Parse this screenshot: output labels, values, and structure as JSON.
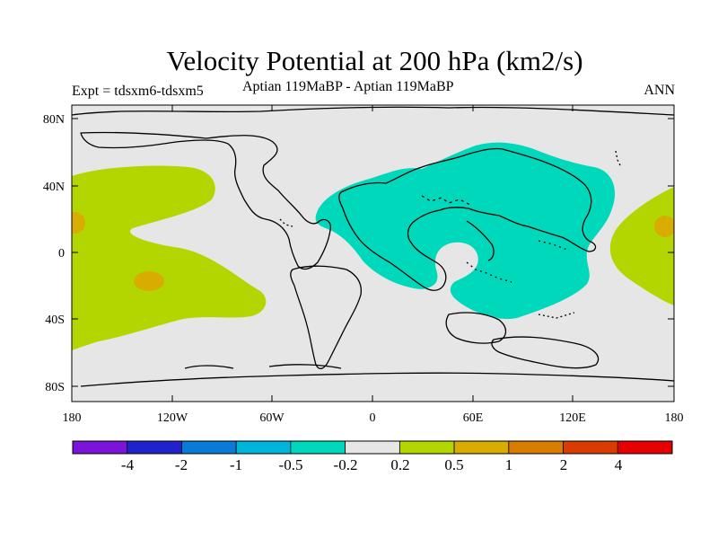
{
  "title": "Velocity Potential at 200 hPa (km2/s)",
  "subtitle_left": "Expt = tdsxm6-tdsxm5",
  "subtitle_center": "Aptian   119MaBP - Aptian   119MaBP",
  "subtitle_right": "ANN",
  "lat_labels": [
    "80N",
    "40N",
    "0",
    "40S",
    "80S"
  ],
  "lon_labels": [
    "180",
    "120W",
    "60W",
    "0",
    "60E",
    "120E",
    "180"
  ],
  "colorbar": {
    "colors": [
      "#7a14d8",
      "#2222cc",
      "#0a7ad8",
      "#00b4dc",
      "#00d8bc",
      "#e6e6e6",
      "#b4d600",
      "#d8ac00",
      "#d87c00",
      "#d83c00",
      "#e60000"
    ],
    "labels": [
      "-4",
      "-2",
      "-1",
      "-0.5",
      "-0.2",
      "0.2",
      "0.5",
      "1",
      "2",
      "4"
    ]
  },
  "palette": {
    "background": "#e6e6e6",
    "positive_low": "#b4d600",
    "positive_mid": "#d8ac00",
    "negative_low": "#00d8bc",
    "coast": "#000000"
  }
}
